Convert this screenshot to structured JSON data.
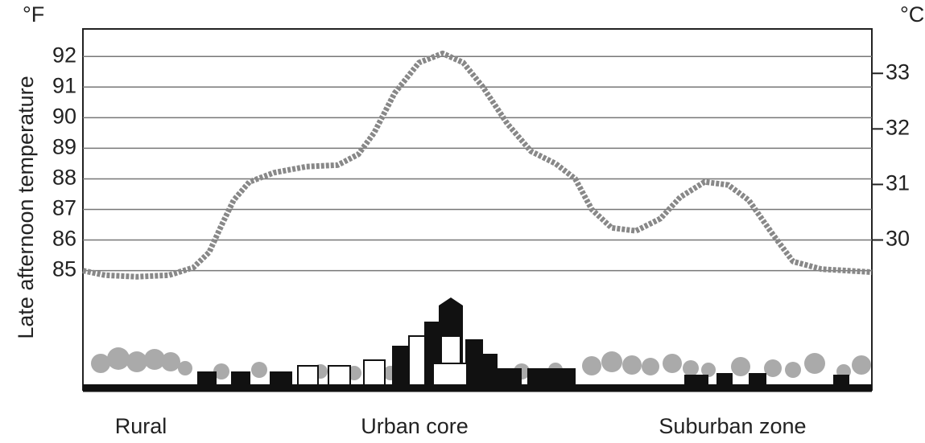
{
  "chart_data": {
    "type": "line",
    "y_unit": "°F",
    "y2_unit": "°C",
    "ylabel": "Late afternoon temperature",
    "zones": [
      "Rural",
      "Urban core",
      "Suburban zone"
    ],
    "x": [
      0,
      2.8,
      6.8,
      10.9,
      14,
      16,
      17.6,
      19.1,
      21.1,
      24.2,
      28.3,
      32.3,
      34.9,
      36.9,
      39.5,
      42.6,
      45.6,
      48.2,
      50.7,
      53.8,
      56.8,
      59.9,
      62.4,
      64.5,
      67,
      70.1,
      73.2,
      75.7,
      78.8,
      81.8,
      84.4,
      87.4,
      90,
      93.6,
      100
    ],
    "series": [
      {
        "color": "#888888",
        "values": [
          85.0,
          84.85,
          84.8,
          84.85,
          85.1,
          85.6,
          86.5,
          87.3,
          87.9,
          88.2,
          88.4,
          88.45,
          88.8,
          89.5,
          90.8,
          91.8,
          92.1,
          91.8,
          91.0,
          89.8,
          88.9,
          88.5,
          88.0,
          87.0,
          86.4,
          86.3,
          86.7,
          87.4,
          87.9,
          87.8,
          87.3,
          86.2,
          85.3,
          85.05,
          84.95
        ]
      }
    ],
    "xlim": [
      0,
      100
    ],
    "ylim": [
      81.1,
      92.9
    ],
    "yticks": [
      85,
      86,
      87,
      88,
      89,
      90,
      91,
      92
    ],
    "y2lim": [
      27.3,
      33.8
    ],
    "y2ticks": [
      30,
      31,
      32,
      33
    ],
    "grid": true
  }
}
